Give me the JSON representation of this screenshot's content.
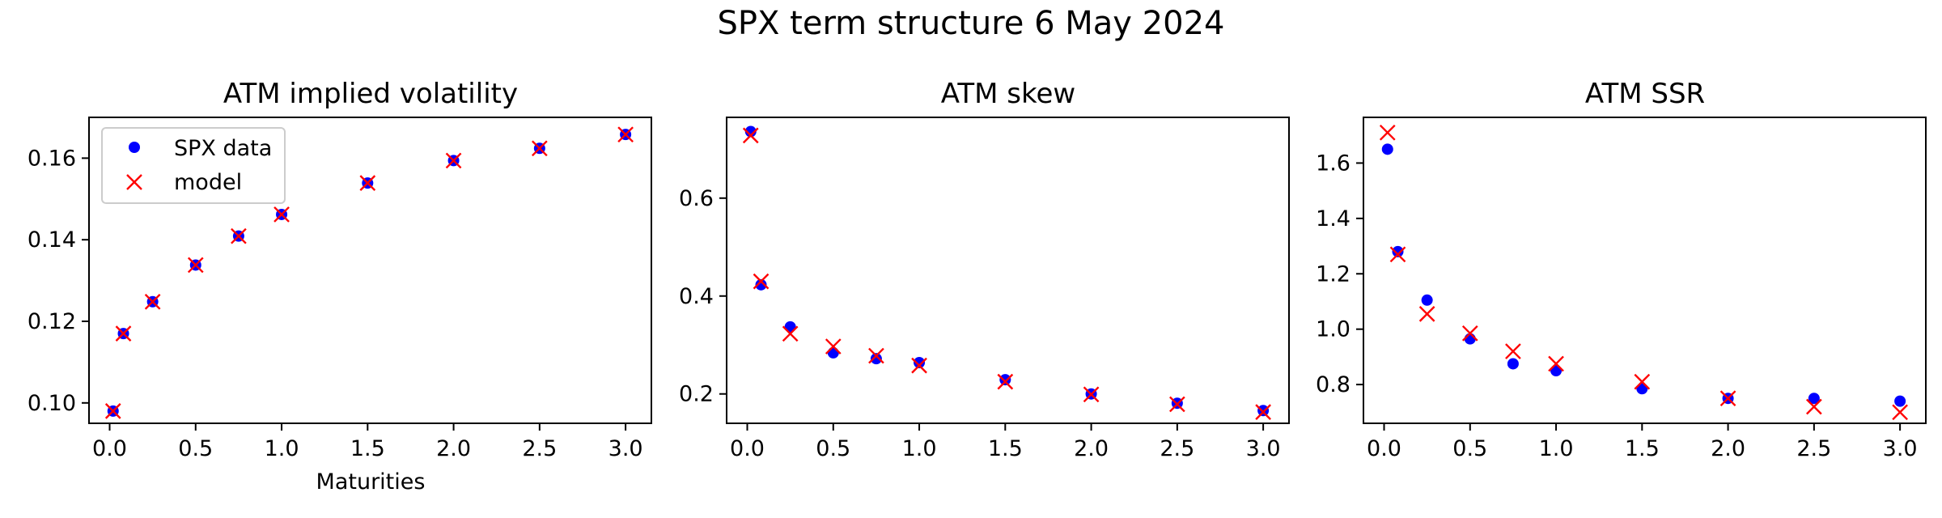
{
  "figure": {
    "suptitle": "SPX term structure 6 May 2024"
  },
  "legend": {
    "series_a": "SPX data",
    "series_b": "model",
    "placement": "upper left"
  },
  "colors": {
    "data_marker": "#0000ff",
    "model_marker": "#ff0000",
    "axes": "#000000"
  },
  "chart_data": [
    {
      "type": "scatter",
      "title": "ATM implied volatility",
      "xlabel": "Maturities",
      "ylabel": "",
      "xlim": [
        -0.12,
        3.15
      ],
      "ylim": [
        0.095,
        0.17
      ],
      "xticks": [
        "0.0",
        "0.5",
        "1.0",
        "1.5",
        "2.0",
        "2.5",
        "3.0"
      ],
      "yticks": [
        "0.10",
        "0.12",
        "0.14",
        "0.16"
      ],
      "legend": true,
      "x": [
        0.02,
        0.08,
        0.25,
        0.5,
        0.75,
        1.0,
        1.5,
        2.0,
        2.5,
        3.0
      ],
      "series": [
        {
          "name": "SPX data",
          "marker": "dot",
          "values": [
            0.098,
            0.117,
            0.1248,
            0.1338,
            0.1409,
            0.1462,
            0.1539,
            0.1594,
            0.1624,
            0.1658
          ]
        },
        {
          "name": "model",
          "marker": "x",
          "values": [
            0.098,
            0.117,
            0.1248,
            0.1338,
            0.1409,
            0.1462,
            0.1539,
            0.1594,
            0.1624,
            0.1658
          ]
        }
      ]
    },
    {
      "type": "scatter",
      "title": "ATM skew",
      "xlabel": "",
      "ylabel": "",
      "xlim": [
        -0.12,
        3.15
      ],
      "ylim": [
        0.14,
        0.765
      ],
      "xticks": [
        "0.0",
        "0.5",
        "1.0",
        "1.5",
        "2.0",
        "2.5",
        "3.0"
      ],
      "yticks": [
        "0.2",
        "0.4",
        "0.6"
      ],
      "legend": false,
      "x": [
        0.02,
        0.08,
        0.25,
        0.5,
        0.75,
        1.0,
        1.5,
        2.0,
        2.5,
        3.0
      ],
      "series": [
        {
          "name": "SPX data",
          "marker": "dot",
          "values": [
            0.736,
            0.423,
            0.337,
            0.284,
            0.272,
            0.264,
            0.229,
            0.2,
            0.181,
            0.166
          ]
        },
        {
          "name": "model",
          "marker": "x",
          "values": [
            0.728,
            0.43,
            0.323,
            0.297,
            0.278,
            0.258,
            0.225,
            0.199,
            0.179,
            0.163
          ]
        }
      ]
    },
    {
      "type": "scatter",
      "title": "ATM SSR",
      "xlabel": "",
      "ylabel": "",
      "xlim": [
        -0.12,
        3.15
      ],
      "ylim": [
        0.66,
        1.765
      ],
      "xticks": [
        "0.0",
        "0.5",
        "1.0",
        "1.5",
        "2.0",
        "2.5",
        "3.0"
      ],
      "yticks": [
        "0.8",
        "1.0",
        "1.2",
        "1.4",
        "1.6"
      ],
      "legend": false,
      "x": [
        0.02,
        0.08,
        0.25,
        0.5,
        0.75,
        1.0,
        1.5,
        2.0,
        2.5,
        3.0
      ],
      "series": [
        {
          "name": "SPX data",
          "marker": "dot",
          "values": [
            1.65,
            1.28,
            1.105,
            0.965,
            0.875,
            0.85,
            0.785,
            0.75,
            0.75,
            0.74
          ]
        },
        {
          "name": "model",
          "marker": "x",
          "values": [
            1.71,
            1.27,
            1.055,
            0.985,
            0.92,
            0.875,
            0.81,
            0.75,
            0.72,
            0.7
          ]
        }
      ]
    }
  ]
}
